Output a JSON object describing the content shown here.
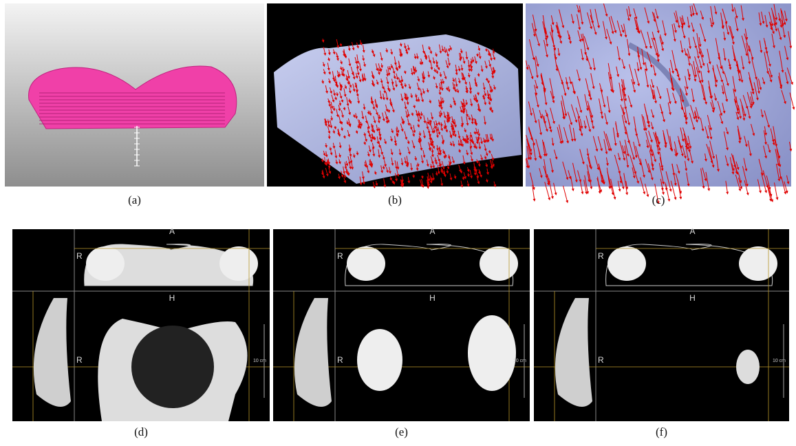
{
  "panels": [
    {
      "caption": "(a)"
    },
    {
      "caption": "(b)"
    },
    {
      "caption": "(c)"
    },
    {
      "caption": "(d)",
      "axial_label": "A",
      "axial_side": "R",
      "coronal_label": "H",
      "coronal_side": "R",
      "scale": "10 cm"
    },
    {
      "caption": "(e)",
      "axial_label": "A",
      "axial_side": "R",
      "coronal_label": "H",
      "coronal_side": "R",
      "scale": "10 cm"
    },
    {
      "caption": "(f)",
      "axial_label": "A",
      "axial_side": "R",
      "coronal_label": "H",
      "coronal_side": "R",
      "scale": "10 cm"
    }
  ]
}
